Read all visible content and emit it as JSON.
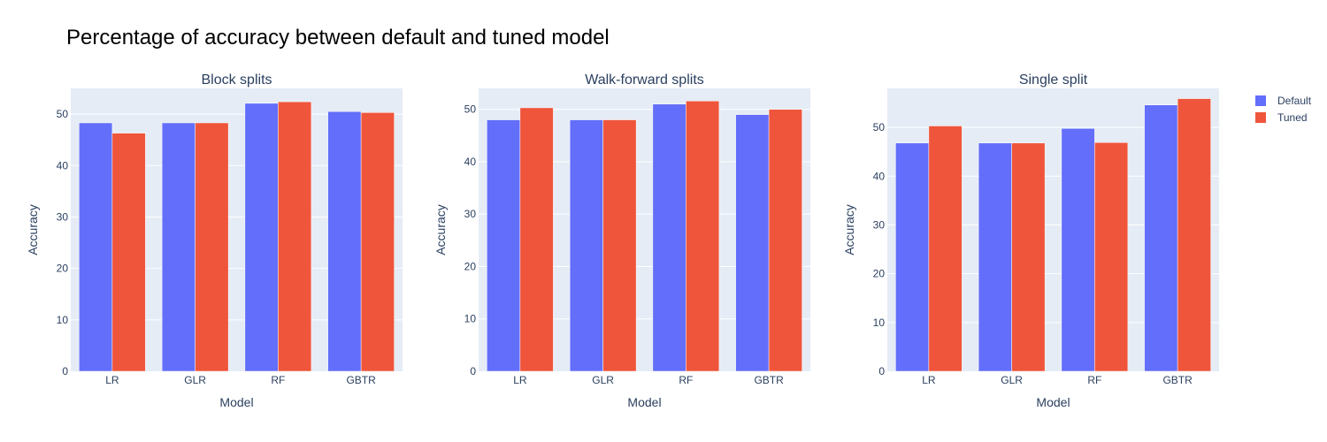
{
  "title": "Percentage of accuracy between default and tuned model",
  "colors": {
    "default": "#636efa",
    "tuned": "#ef553b",
    "plot_bg": "#e5ecf6",
    "grid": "#ffffff"
  },
  "legend": {
    "placement": "top-right",
    "items": [
      "Default",
      "Tuned"
    ]
  },
  "chart_data": [
    {
      "type": "bar",
      "title": "Block splits",
      "xlabel": "Model",
      "ylabel": "Accuracy",
      "categories": [
        "LR",
        "GLR",
        "RF",
        "GBTR"
      ],
      "ylim": [
        0,
        55
      ],
      "yticks": [
        0,
        10,
        20,
        30,
        40,
        50
      ],
      "grid": true,
      "series": [
        {
          "name": "Default",
          "values": [
            48.3,
            48.3,
            52.1,
            50.5
          ]
        },
        {
          "name": "Tuned",
          "values": [
            46.3,
            48.3,
            52.4,
            50.3
          ]
        }
      ]
    },
    {
      "type": "bar",
      "title": "Walk-forward splits",
      "xlabel": "Model",
      "ylabel": "Accuracy",
      "categories": [
        "LR",
        "GLR",
        "RF",
        "GBTR"
      ],
      "ylim": [
        0,
        54
      ],
      "yticks": [
        0,
        10,
        20,
        30,
        40,
        50
      ],
      "grid": true,
      "series": [
        {
          "name": "Default",
          "values": [
            48.0,
            48.0,
            51.0,
            49.0
          ]
        },
        {
          "name": "Tuned",
          "values": [
            50.3,
            48.0,
            51.6,
            50.0
          ]
        }
      ]
    },
    {
      "type": "bar",
      "title": "Single split",
      "xlabel": "Model",
      "ylabel": "Accuracy",
      "categories": [
        "LR",
        "GLR",
        "RF",
        "GBTR"
      ],
      "ylim": [
        0,
        58
      ],
      "yticks": [
        0,
        10,
        20,
        30,
        40,
        50
      ],
      "grid": true,
      "series": [
        {
          "name": "Default",
          "values": [
            46.8,
            46.8,
            49.8,
            54.6
          ]
        },
        {
          "name": "Tuned",
          "values": [
            50.3,
            46.8,
            46.9,
            55.9
          ]
        }
      ]
    }
  ]
}
